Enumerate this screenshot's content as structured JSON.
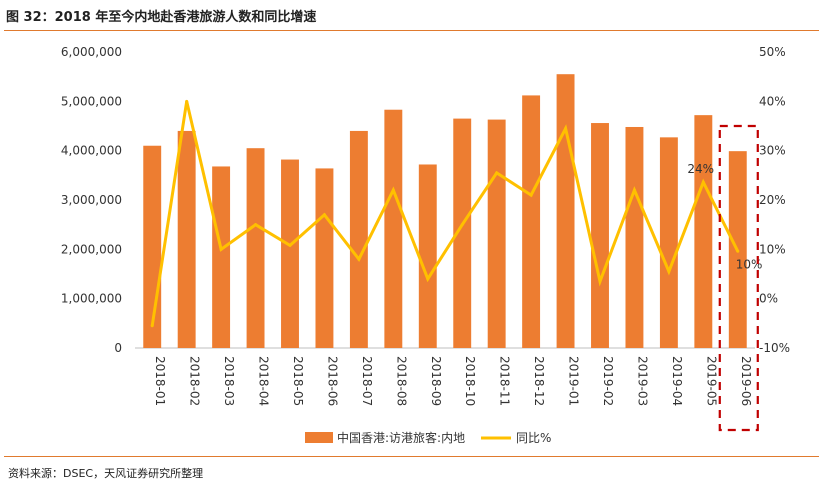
{
  "header": {
    "title": "图 32：2018 年至今内地赴香港旅游人数和同比增速"
  },
  "footer": {
    "source": "资料来源：DSEC，天风证券研究所整理"
  },
  "colors": {
    "bar": "#ed7d31",
    "line": "#ffc000",
    "highlight": "#c00000",
    "rule": "#e07a2e"
  },
  "chart_data": {
    "type": "bar+line",
    "categories": [
      "2018-01",
      "2018-02",
      "2018-03",
      "2018-04",
      "2018-05",
      "2018-06",
      "2018-07",
      "2018-08",
      "2018-09",
      "2018-10",
      "2018-11",
      "2018-12",
      "2019-01",
      "2019-02",
      "2019-03",
      "2019-04",
      "2019-05",
      "2019-06"
    ],
    "series": [
      {
        "name": "中国香港:访港旅客:内地",
        "type": "bar",
        "axis": "left",
        "values": [
          4100000,
          4400000,
          3680000,
          4050000,
          3820000,
          3640000,
          4400000,
          4830000,
          3720000,
          4650000,
          4630000,
          5120000,
          5550000,
          4560000,
          4480000,
          4270000,
          4720000,
          3990000
        ]
      },
      {
        "name": "同比%",
        "type": "line",
        "axis": "right",
        "values": [
          -5.5,
          40,
          10,
          15,
          10.8,
          17,
          8,
          22,
          4,
          15,
          25.5,
          21,
          34.5,
          3.5,
          22,
          5.5,
          23.6,
          9.6
        ]
      }
    ],
    "y_left": {
      "min": 0,
      "max": 6000000,
      "step": 1000000,
      "tick_labels": [
        "0",
        "1,000,000",
        "2,000,000",
        "3,000,000",
        "4,000,000",
        "5,000,000",
        "6,000,000"
      ]
    },
    "y_right": {
      "min": -10,
      "max": 50,
      "step": 10,
      "tick_labels": [
        "-10%",
        "0%",
        "10%",
        "20%",
        "30%",
        "40%",
        "50%"
      ]
    },
    "annotations": [
      {
        "category": "2019-05",
        "text": "24%"
      },
      {
        "category": "2019-06",
        "text": "10%"
      }
    ],
    "highlight": {
      "category": "2019-06",
      "style": "dashed box"
    },
    "legend": {
      "position": "bottom",
      "items": [
        "中国香港:访港旅客:内地",
        "同比%"
      ]
    },
    "grid": false
  }
}
